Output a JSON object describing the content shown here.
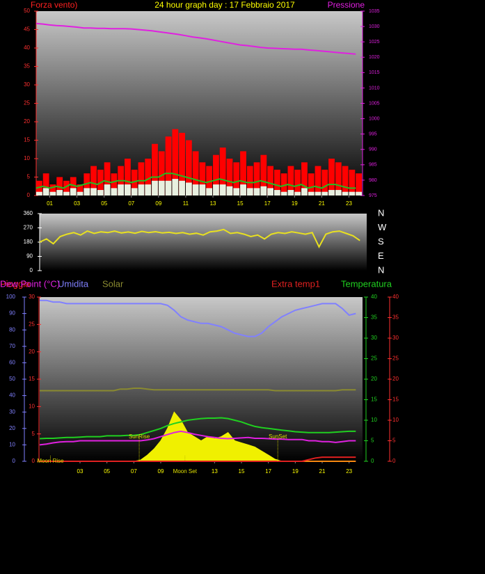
{
  "chart_data": [
    {
      "type": "combo",
      "title": "24 hour graph day : 17 Febbraio 2017",
      "y_label": "Forza vento)",
      "y2_label": "Pressione",
      "xlim": [
        0,
        24
      ],
      "xticks": [
        {
          "value": 1,
          "label": "01"
        },
        {
          "value": 3,
          "label": "03"
        },
        {
          "value": 5,
          "label": "05"
        },
        {
          "value": 7,
          "label": "07"
        },
        {
          "value": 9,
          "label": "09"
        },
        {
          "value": 11,
          "label": "11"
        },
        {
          "value": 13,
          "label": "13"
        },
        {
          "value": 15,
          "label": "15"
        },
        {
          "value": 17,
          "label": "17"
        },
        {
          "value": 19,
          "label": "19"
        },
        {
          "value": 21,
          "label": "21"
        },
        {
          "value": 23,
          "label": "23"
        }
      ],
      "ylim": [
        0,
        50
      ],
      "yticks": [
        0,
        5,
        10,
        15,
        20,
        25,
        30,
        35,
        40,
        45,
        50
      ],
      "y2lim": [
        975,
        1035
      ],
      "y2ticks": [
        975,
        980,
        985,
        990,
        995,
        1000,
        1005,
        1010,
        1015,
        1020,
        1025,
        1030,
        1035
      ],
      "x": [
        0,
        0.5,
        1,
        1.5,
        2,
        2.5,
        3,
        3.5,
        4,
        4.5,
        5,
        5.5,
        6,
        6.5,
        7,
        7.5,
        8,
        8.5,
        9,
        9.5,
        10,
        10.5,
        11,
        11.5,
        12,
        12.5,
        13,
        13.5,
        14,
        14.5,
        15,
        15.5,
        16,
        16.5,
        17,
        17.5,
        18,
        18.5,
        19,
        19.5,
        20,
        20.5,
        21,
        21.5,
        22,
        22.5,
        23,
        23.5
      ],
      "series": [
        {
          "kind": "bar",
          "axis": "y",
          "color": "#ff0000",
          "values": [
            4,
            6,
            3,
            5,
            4,
            5,
            3,
            6,
            8,
            7,
            9,
            6,
            8,
            10,
            7,
            9,
            10,
            14,
            12,
            16,
            18,
            17,
            15,
            12,
            9,
            8,
            11,
            13,
            10,
            9,
            12,
            8,
            9,
            11,
            8,
            7,
            6,
            8,
            7,
            9,
            6,
            8,
            7,
            10,
            9,
            8,
            7,
            6
          ]
        },
        {
          "kind": "bar",
          "axis": "y",
          "color": "#e8f0e0",
          "values": [
            1,
            2,
            1,
            1.5,
            1,
            2,
            1,
            2,
            2,
            1.5,
            3,
            2,
            3,
            3,
            2,
            3,
            3,
            4,
            4,
            4,
            4.5,
            4,
            3.5,
            3,
            3,
            2,
            3,
            3,
            2.5,
            2,
            3,
            2,
            2,
            2.5,
            2,
            1.5,
            1,
            1.5,
            1,
            2,
            1,
            1,
            1,
            1.5,
            1.5,
            1,
            1,
            1
          ]
        },
        {
          "kind": "line",
          "axis": "y",
          "color": "#20c020",
          "values": [
            2,
            2.5,
            2,
            2.5,
            2,
            3,
            2.5,
            3,
            3.5,
            3,
            4,
            3.5,
            4,
            4,
            3.5,
            4,
            4,
            5,
            5,
            6,
            6,
            5.5,
            5,
            4.5,
            4,
            3.5,
            4,
            4.5,
            4,
            3.5,
            4,
            3.5,
            3.5,
            4,
            3.5,
            3,
            2.5,
            3,
            2.5,
            3,
            2,
            2.5,
            2,
            3,
            3,
            2.5,
            2,
            2
          ]
        },
        {
          "kind": "line",
          "axis": "y2",
          "color": "#e020e0",
          "values": [
            1031,
            1030.8,
            1030.5,
            1030.3,
            1030.2,
            1030,
            1029.8,
            1029.5,
            1029.5,
            1029.4,
            1029.4,
            1029.3,
            1029.3,
            1029.3,
            1029.2,
            1029,
            1028.8,
            1028.6,
            1028.3,
            1028,
            1027.7,
            1027.4,
            1027,
            1026.6,
            1026.3,
            1026,
            1025.6,
            1025.2,
            1024.8,
            1024.4,
            1024,
            1023.8,
            1023.5,
            1023.2,
            1023,
            1022.9,
            1022.8,
            1022.7,
            1022.6,
            1022.6,
            1022.4,
            1022.2,
            1022,
            1021.8,
            1021.6,
            1021.4,
            1021.2,
            1021
          ]
        }
      ]
    },
    {
      "type": "combo",
      "xlim": [
        0,
        24
      ],
      "ylim": [
        0,
        360
      ],
      "yticks": [
        0,
        90,
        180,
        270,
        360
      ],
      "y2lim": [
        0,
        360
      ],
      "y2ticks": [
        {
          "value": 0,
          "label": "N"
        },
        {
          "value": 90,
          "label": "E"
        },
        {
          "value": 180,
          "label": "S"
        },
        {
          "value": 270,
          "label": "W"
        },
        {
          "value": 360,
          "label": "N"
        }
      ],
      "x": [
        0,
        0.5,
        1,
        1.5,
        2,
        2.5,
        3,
        3.5,
        4,
        4.5,
        5,
        5.5,
        6,
        6.5,
        7,
        7.5,
        8,
        8.5,
        9,
        9.5,
        10,
        10.5,
        11,
        11.5,
        12,
        12.5,
        13,
        13.5,
        14,
        14.5,
        15,
        15.5,
        16,
        16.5,
        17,
        17.5,
        18,
        18.5,
        19,
        19.5,
        20,
        20.5,
        21,
        21.5,
        22,
        22.5,
        23,
        23.5
      ],
      "series": [
        {
          "kind": "line",
          "axis": "y",
          "color": "#e8e020",
          "values": [
            180,
            200,
            170,
            215,
            230,
            240,
            225,
            250,
            235,
            245,
            240,
            250,
            238,
            244,
            236,
            248,
            240,
            246,
            238,
            242,
            235,
            240,
            230,
            236,
            225,
            245,
            250,
            260,
            235,
            240,
            230,
            215,
            225,
            200,
            230,
            240,
            235,
            245,
            238,
            230,
            240,
            150,
            230,
            245,
            250,
            235,
            220,
            190
          ]
        }
      ]
    },
    {
      "type": "combo",
      "xlim": [
        0,
        24
      ],
      "xticks": [
        {
          "value": 3,
          "label": "03"
        },
        {
          "value": 5,
          "label": "05"
        },
        {
          "value": 7,
          "label": "07"
        },
        {
          "value": 9,
          "label": "09"
        },
        {
          "value": 13,
          "label": "13"
        },
        {
          "value": 15,
          "label": "15"
        },
        {
          "value": 17,
          "label": "17"
        },
        {
          "value": 19,
          "label": "19"
        },
        {
          "value": 21,
          "label": "21"
        },
        {
          "value": 23,
          "label": "23"
        }
      ],
      "ylim": [
        0,
        100
      ],
      "yticks": [
        0,
        10,
        20,
        30,
        40,
        50,
        60,
        70,
        80,
        90,
        100
      ],
      "y3lim": [
        0,
        30
      ],
      "y3ticks": [
        0,
        5,
        10,
        15,
        20,
        25,
        30
      ],
      "y2lim": [
        0,
        40
      ],
      "y2ticks": [
        0,
        5,
        10,
        15,
        20,
        25,
        30,
        35,
        40
      ],
      "y4lim": [
        0,
        40
      ],
      "y4ticks": [
        0,
        5,
        10,
        15,
        20,
        25,
        30,
        35,
        40
      ],
      "annotations": [
        {
          "text": "Moon Rise",
          "x": 0.8
        },
        {
          "text": "SunRise",
          "x": 7.4
        },
        {
          "text": "Moon Set",
          "x": 10.8
        },
        {
          "text": "SunSet",
          "x": 17.7
        }
      ],
      "x": [
        0,
        0.5,
        1,
        1.5,
        2,
        2.5,
        3,
        3.5,
        4,
        4.5,
        5,
        5.5,
        6,
        6.5,
        7,
        7.5,
        8,
        8.5,
        9,
        9.5,
        10,
        10.5,
        11,
        11.5,
        12,
        12.5,
        13,
        13.5,
        14,
        14.5,
        15,
        15.5,
        16,
        16.5,
        17,
        17.5,
        18,
        18.5,
        19,
        19.5,
        20,
        20.5,
        21,
        21.5,
        22,
        22.5,
        23,
        23.5
      ],
      "series": [
        {
          "name": "Pioggia",
          "kind": "line",
          "axis": "y3",
          "color": "#ff2020",
          "values": [
            0,
            0,
            0,
            0,
            0,
            0,
            0,
            0,
            0,
            0,
            0,
            0,
            0,
            0,
            0,
            0,
            0,
            0,
            0,
            0,
            0,
            0,
            0,
            0,
            0,
            0,
            0,
            0,
            0,
            0,
            0,
            0,
            0,
            0,
            0,
            0,
            0,
            0,
            0,
            0,
            0,
            0,
            0,
            0,
            0,
            0,
            0,
            0
          ]
        },
        {
          "name": "Umidita",
          "kind": "line",
          "axis": "y",
          "color": "#8080ff",
          "values": [
            98,
            98,
            97,
            97,
            96,
            96,
            96,
            96,
            96,
            96,
            96,
            96,
            96,
            96,
            96,
            96,
            96,
            96,
            96,
            95,
            92,
            88,
            86,
            85,
            84,
            84,
            83,
            82,
            80,
            78,
            77,
            76,
            76,
            78,
            82,
            85,
            88,
            90,
            92,
            93,
            94,
            95,
            96,
            96,
            96,
            93,
            89,
            90
          ]
        },
        {
          "name": "Solar",
          "kind": "line",
          "axis": "y2",
          "color": "#8a8a30",
          "values": [
            17.2,
            17.2,
            17.2,
            17.2,
            17.2,
            17.2,
            17.2,
            17.2,
            17.2,
            17.2,
            17.2,
            17.2,
            17.6,
            17.6,
            17.8,
            17.8,
            17.6,
            17.4,
            17.4,
            17.4,
            17.4,
            17.4,
            17.4,
            17.4,
            17.4,
            17.4,
            17.4,
            17.4,
            17.4,
            17.4,
            17.4,
            17.4,
            17.4,
            17.4,
            17.4,
            17.2,
            17.2,
            17.2,
            17.2,
            17.2,
            17.2,
            17.2,
            17.2,
            17.2,
            17.2,
            17.4,
            17.4,
            17.4
          ]
        },
        {
          "kind": "area",
          "axis": "y2",
          "color": "#f0f000",
          "values": [
            0,
            0,
            0,
            0,
            0,
            0,
            0,
            0,
            0,
            0,
            0,
            0,
            0,
            0,
            0,
            0.3,
            1.5,
            3,
            5,
            8,
            12,
            10,
            7,
            6,
            5,
            6,
            5.5,
            6,
            7,
            5,
            4.5,
            4,
            3.5,
            2.5,
            1.5,
            0.5,
            0,
            0,
            0,
            0,
            0,
            0,
            0,
            0,
            0,
            0,
            0,
            0
          ]
        },
        {
          "name": "Extra temp1",
          "kind": "line",
          "axis": "y4",
          "color": "#e02020",
          "values": [
            0,
            0,
            0,
            0,
            0,
            0,
            0,
            0,
            0,
            0,
            0,
            0,
            0,
            0,
            0,
            0,
            0,
            0,
            0,
            0,
            0,
            0,
            0,
            0,
            0,
            0,
            0,
            0,
            0,
            0,
            0,
            0,
            0,
            0,
            0,
            0,
            0,
            0,
            0,
            0,
            0.4,
            0.8,
            1,
            1,
            1,
            1,
            1,
            1
          ]
        },
        {
          "name": "Temperatura",
          "kind": "line",
          "axis": "y2",
          "color": "#20d020",
          "values": [
            5.5,
            5.6,
            5.6,
            5.7,
            5.8,
            5.8,
            5.9,
            6,
            6,
            6,
            6.2,
            6.2,
            6.2,
            6.3,
            6.3,
            6.5,
            7,
            7.5,
            8,
            8.7,
            9.2,
            9.6,
            10,
            10.2,
            10.4,
            10.5,
            10.5,
            10.6,
            10.4,
            10,
            9.6,
            9,
            8.5,
            8.2,
            8,
            7.8,
            7.6,
            7.4,
            7.2,
            7.1,
            7,
            7,
            7,
            7,
            7.1,
            7.2,
            7.3,
            7.3
          ]
        },
        {
          "name": "Dew Point (°C)",
          "kind": "line",
          "axis": "y4",
          "color": "#e020e0",
          "values": [
            4,
            4.2,
            4.5,
            4.7,
            4.8,
            4.8,
            5,
            5,
            5,
            5,
            5,
            5,
            5,
            5,
            5,
            5,
            5.2,
            5.5,
            6,
            6.5,
            7,
            7.3,
            7,
            6.6,
            6.3,
            6,
            5.8,
            5.6,
            5.5,
            5.6,
            5.7,
            5.8,
            5.6,
            5.6,
            5.5,
            5.4,
            5.4,
            5.3,
            5.3,
            5.3,
            5,
            5,
            4.8,
            4.8,
            4.6,
            4.8,
            5,
            5
          ]
        }
      ]
    }
  ]
}
